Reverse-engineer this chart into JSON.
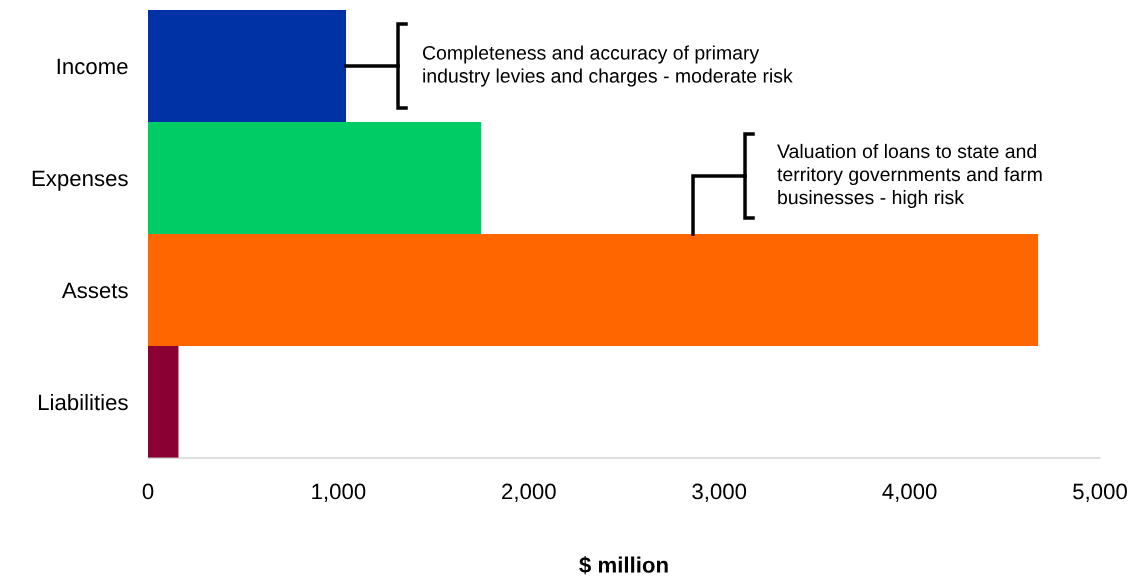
{
  "chart_data": {
    "type": "bar",
    "orientation": "horizontal",
    "categories": [
      "Income",
      "Expenses",
      "Assets",
      "Liabilities"
    ],
    "values": [
      1040,
      1750,
      4675,
      160
    ],
    "colors": [
      "#0031a5",
      "#00cc66",
      "#ff6600",
      "#8b0033"
    ],
    "xlabel": "$ million",
    "xlim": [
      0,
      5000
    ],
    "xticks": [
      {
        "value": 0,
        "label": "0"
      },
      {
        "value": 1000,
        "label": "1,000"
      },
      {
        "value": 2000,
        "label": "2,000"
      },
      {
        "value": 3000,
        "label": "3,000"
      },
      {
        "value": 4000,
        "label": "4,000"
      },
      {
        "value": 5000,
        "label": "5,000"
      }
    ],
    "grid": false,
    "legend": false,
    "annotations": [
      {
        "text": "Completeness and accuracy of primary\nindustry levies and charges - moderate risk",
        "x": 1040,
        "y": "Income"
      },
      "Valuation of loans to state and\nterritory governments and farm\nbusinesses - high risk"
    ]
  }
}
